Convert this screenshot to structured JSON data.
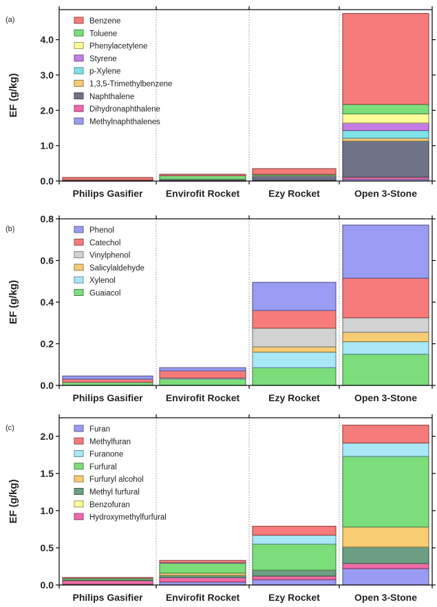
{
  "figure": {
    "panels": [
      {
        "panel_label": "(a)",
        "ylabel": "EF (g/kg)",
        "ylim": [
          0,
          4.85
        ],
        "yticks": [
          "0.0",
          "1.0",
          "2.0",
          "3.0",
          "4.0"
        ],
        "ytick_values": [
          0,
          1,
          2,
          3,
          4
        ]
      },
      {
        "panel_label": "(b)",
        "ylabel": "EF (g/kg)",
        "ylim": [
          0,
          0.8
        ],
        "yticks": [
          "0.0",
          "0.2",
          "0.4",
          "0.6",
          "0.8"
        ],
        "ytick_values": [
          0,
          0.2,
          0.4,
          0.6,
          0.8
        ]
      },
      {
        "panel_label": "(c)",
        "ylabel": "EF (g/kg)",
        "ylim": [
          0,
          2.25
        ],
        "yticks": [
          "0.0",
          "0.5",
          "1.0",
          "1.5",
          "2.0"
        ],
        "ytick_values": [
          0,
          0.5,
          1.0,
          1.5,
          2.0
        ]
      }
    ]
  },
  "chart_data": [
    {
      "type": "bar",
      "stacked": true,
      "ylabel": "EF (g/kg)",
      "ylim": [
        0,
        4.85
      ],
      "legend_position": "top-left",
      "categories": [
        "Philips Gasifier",
        "Envirofit Rocket",
        "Ezy Rocket",
        "Open 3-Stone"
      ],
      "stack_order": [
        "Methylnaphthalenes",
        "Dihydronaphthalene",
        "Naphthalene",
        "1,3,5-Trimethylbenzene",
        "p-Xylene",
        "Styrene",
        "Phenylacetylene",
        "Toluene",
        "Benzene"
      ],
      "series": [
        {
          "name": "Benzene",
          "color": "#f77b7b",
          "values": [
            0.07,
            0.04,
            0.16,
            2.57
          ]
        },
        {
          "name": "Toluene",
          "color": "#7bde7b",
          "values": [
            0.01,
            0.1,
            0.03,
            0.27
          ]
        },
        {
          "name": "Phenylacetylene",
          "color": "#fdfd9a",
          "values": [
            0.0,
            0.0,
            0.01,
            0.26
          ]
        },
        {
          "name": "Styrene",
          "color": "#c57de6",
          "values": [
            0.0,
            0.0,
            0.0,
            0.21
          ]
        },
        {
          "name": "p-Xylene",
          "color": "#7fe3ea",
          "values": [
            0.0,
            0.0,
            0.0,
            0.22
          ]
        },
        {
          "name": "1,3,5-Trimethylbenzene",
          "color": "#f7cc73",
          "values": [
            0.0,
            0.0,
            0.0,
            0.08
          ]
        },
        {
          "name": "Naphthalene",
          "color": "#6e7388",
          "values": [
            0.01,
            0.04,
            0.13,
            1.02
          ]
        },
        {
          "name": "Dihydronaphthalene",
          "color": "#ee6aa8",
          "values": [
            0.01,
            0.01,
            0.02,
            0.06
          ]
        },
        {
          "name": "Methylnaphthalenes",
          "color": "#9a9bf2",
          "values": [
            0.0,
            0.0,
            0.0,
            0.05
          ]
        }
      ]
    },
    {
      "type": "bar",
      "stacked": true,
      "ylabel": "EF (g/kg)",
      "ylim": [
        0,
        0.8
      ],
      "legend_position": "top-left",
      "categories": [
        "Philips Gasifier",
        "Envirofit Rocket",
        "Ezy Rocket",
        "Open 3-Stone"
      ],
      "stack_order": [
        "Guaiacol",
        "Xylenol",
        "Salicylaldehyde",
        "Vinylphenol",
        "Catechol",
        "Phenol"
      ],
      "series": [
        {
          "name": "Phenol",
          "color": "#9a9bf2",
          "values": [
            0.015,
            0.015,
            0.135,
            0.255
          ]
        },
        {
          "name": "Catechol",
          "color": "#f77b7b",
          "values": [
            0.015,
            0.035,
            0.085,
            0.19
          ]
        },
        {
          "name": "Vinylphenol",
          "color": "#d2d2d2",
          "values": [
            0.0,
            0.0,
            0.09,
            0.07
          ]
        },
        {
          "name": "Salicylaldehyde",
          "color": "#f7cc73",
          "values": [
            0.0,
            0.0,
            0.025,
            0.045
          ]
        },
        {
          "name": "Xylenol",
          "color": "#a8e8f7",
          "values": [
            0.0,
            0.005,
            0.075,
            0.06
          ]
        },
        {
          "name": "Guaiacol",
          "color": "#7bde7b",
          "values": [
            0.015,
            0.03,
            0.085,
            0.15
          ]
        }
      ]
    },
    {
      "type": "bar",
      "stacked": true,
      "ylabel": "EF (g/kg)",
      "ylim": [
        0,
        2.25
      ],
      "legend_position": "top-left",
      "categories": [
        "Philips Gasifier",
        "Envirofit Rocket",
        "Ezy Rocket",
        "Open 3-Stone"
      ],
      "stack_order": [
        "Furan",
        "Hydroxymethylfurfural",
        "Benzofuran",
        "Methyl furfural",
        "Furfuryl alcohol",
        "Furfural",
        "Furanone",
        "Methylfuran"
      ],
      "series": [
        {
          "name": "Furan",
          "color": "#9a9bf2",
          "values": [
            0.01,
            0.04,
            0.07,
            0.22
          ]
        },
        {
          "name": "Methylfuran",
          "color": "#f77b7b",
          "values": [
            0.01,
            0.03,
            0.12,
            0.24
          ]
        },
        {
          "name": "Furanone",
          "color": "#a8e8f7",
          "values": [
            0.0,
            0.01,
            0.12,
            0.18
          ]
        },
        {
          "name": "Furfural",
          "color": "#7bde7b",
          "values": [
            0.02,
            0.13,
            0.35,
            0.95
          ]
        },
        {
          "name": "Furfuryl alcohol",
          "color": "#f7cc73",
          "values": [
            0.0,
            0.03,
            0.0,
            0.27
          ]
        },
        {
          "name": "Methyl furfural",
          "color": "#6b9e82",
          "values": [
            0.01,
            0.03,
            0.08,
            0.22
          ]
        },
        {
          "name": "Benzofuran",
          "color": "#fdfd9a",
          "values": [
            0.0,
            0.0,
            0.0,
            0.0
          ]
        },
        {
          "name": "Hydroxymethylfurfural",
          "color": "#ee6aa8",
          "values": [
            0.05,
            0.06,
            0.05,
            0.07
          ]
        }
      ]
    }
  ]
}
